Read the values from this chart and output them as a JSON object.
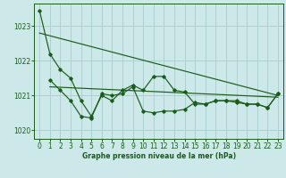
{
  "title": "Graphe pression niveau de la mer (hPa)",
  "bg_color": "#cce8e8",
  "grid_color": "#aacccc",
  "line_color": "#1a5c1a",
  "xlim": [
    -0.5,
    23.5
  ],
  "ylim": [
    1019.75,
    1023.65
  ],
  "yticks": [
    1020,
    1021,
    1022,
    1023
  ],
  "xticks": [
    0,
    1,
    2,
    3,
    4,
    5,
    6,
    7,
    8,
    9,
    10,
    11,
    12,
    13,
    14,
    15,
    16,
    17,
    18,
    19,
    20,
    21,
    22,
    23
  ],
  "series1_x": [
    0,
    1,
    2,
    3,
    4,
    5,
    6,
    7,
    8,
    9,
    10,
    11,
    12,
    13,
    14,
    15,
    16,
    17,
    18,
    19,
    20,
    21,
    22,
    23
  ],
  "series1_y": [
    1023.45,
    1022.2,
    1021.75,
    1021.5,
    1020.85,
    1020.4,
    1021.0,
    1020.85,
    1021.15,
    1021.3,
    1021.15,
    1021.55,
    1021.55,
    1021.15,
    1021.1,
    1020.75,
    1020.75,
    1020.85,
    1020.85,
    1020.85,
    1020.75,
    1020.75,
    1020.65,
    1021.05
  ],
  "series2_x": [
    1,
    2,
    3,
    4,
    5,
    6,
    7,
    8,
    9,
    10,
    11,
    12,
    13,
    14,
    15,
    16,
    17,
    18,
    19,
    20,
    21,
    22,
    23
  ],
  "series2_y": [
    1021.45,
    1021.15,
    1020.85,
    1020.4,
    1020.35,
    1021.05,
    1021.0,
    1021.05,
    1021.25,
    1020.55,
    1020.5,
    1020.55,
    1020.55,
    1020.6,
    1020.8,
    1020.75,
    1020.85,
    1020.85,
    1020.8,
    1020.75,
    1020.75,
    1020.65,
    1021.05
  ],
  "trend1_x": [
    0,
    23
  ],
  "trend1_y": [
    1022.8,
    1021.0
  ],
  "trend2_x": [
    1,
    23
  ],
  "trend2_y": [
    1021.25,
    1020.95
  ]
}
